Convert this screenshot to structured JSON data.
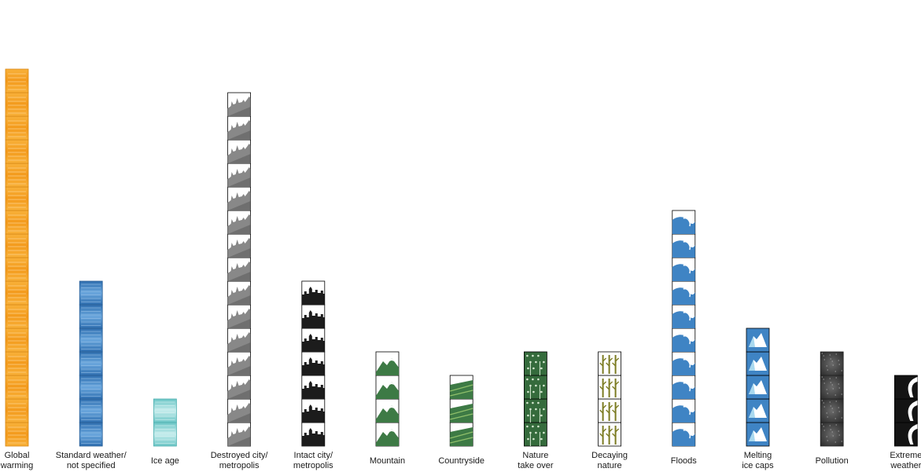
{
  "chart_data": {
    "type": "bar",
    "title": "",
    "xlabel": "",
    "ylabel": "",
    "grid": false,
    "legend": "none",
    "categories": [
      [
        "Global",
        "warming"
      ],
      [
        "Standard weather/",
        "not specified"
      ],
      [
        "Ice age"
      ],
      [
        "Destroyed city/",
        "metropolis"
      ],
      [
        "Intact city/",
        "metropolis"
      ],
      [
        "Mountain"
      ],
      [
        "Countryside"
      ],
      [
        "Nature",
        "take over"
      ],
      [
        "Decaying",
        "nature"
      ],
      [
        "Floods"
      ],
      [
        "Melting",
        "ice caps"
      ],
      [
        "Pollution"
      ],
      [
        "Extreme",
        "weather"
      ]
    ],
    "values": [
      16,
      7,
      2,
      15,
      7,
      4,
      3,
      4,
      4,
      10,
      5,
      4,
      3
    ],
    "icons": [
      "sun-pattern-icon",
      "rain-pattern-icon",
      "ice-pattern-icon",
      "destroyed-city-icon",
      "intact-city-icon",
      "mountain-icon",
      "countryside-icon",
      "jungle-icon",
      "dead-trees-icon",
      "wave-icon",
      "iceberg-icon",
      "smog-icon",
      "tornado-icon"
    ],
    "colors": [
      "#f6a623",
      "#3f84c4",
      "#7fd1d0",
      "#888888",
      "#1c1c1c",
      "#3d7a45",
      "#3d7a45",
      "#356b3c",
      "#7b7b22",
      "#3f84c4",
      "#3f84c4",
      "#4a4a4a",
      "#141414"
    ]
  }
}
